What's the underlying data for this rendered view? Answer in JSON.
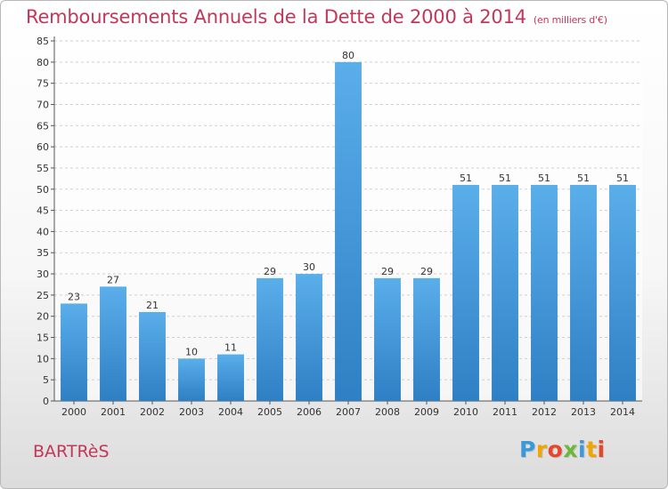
{
  "header": {
    "title": "Remboursements Annuels de la Dette de 2000 à 2014",
    "subtitle": "(en milliers d'€)"
  },
  "footer": {
    "commune": "BARTRèS",
    "logo_letters": [
      "P",
      "r",
      "o",
      "x",
      "i",
      "t",
      "i"
    ],
    "logo_colors": [
      "#3a9ad9",
      "#f0a500",
      "#e8462c",
      "#6cb83a",
      "#3a9ad9",
      "#f0a500",
      "#e8462c"
    ]
  },
  "chart_data": {
    "type": "bar",
    "title": "Remboursements Annuels de la Dette de 2000 à 2014",
    "subtitle": "(en milliers d'€)",
    "categories": [
      "2000",
      "2001",
      "2002",
      "2003",
      "2004",
      "2005",
      "2006",
      "2007",
      "2008",
      "2009",
      "2010",
      "2011",
      "2012",
      "2013",
      "2014"
    ],
    "values": [
      23,
      27,
      21,
      10,
      11,
      29,
      30,
      80,
      29,
      29,
      51,
      51,
      51,
      51,
      51
    ],
    "xlabel": "",
    "ylabel": "",
    "ylim": [
      0,
      85
    ],
    "yticks": [
      0,
      5,
      10,
      15,
      20,
      25,
      30,
      35,
      40,
      45,
      50,
      55,
      60,
      65,
      70,
      75,
      80,
      85
    ],
    "grid": true,
    "bar_color": "#4a9fe0",
    "bar_color_dark": "#2f7fc4"
  }
}
